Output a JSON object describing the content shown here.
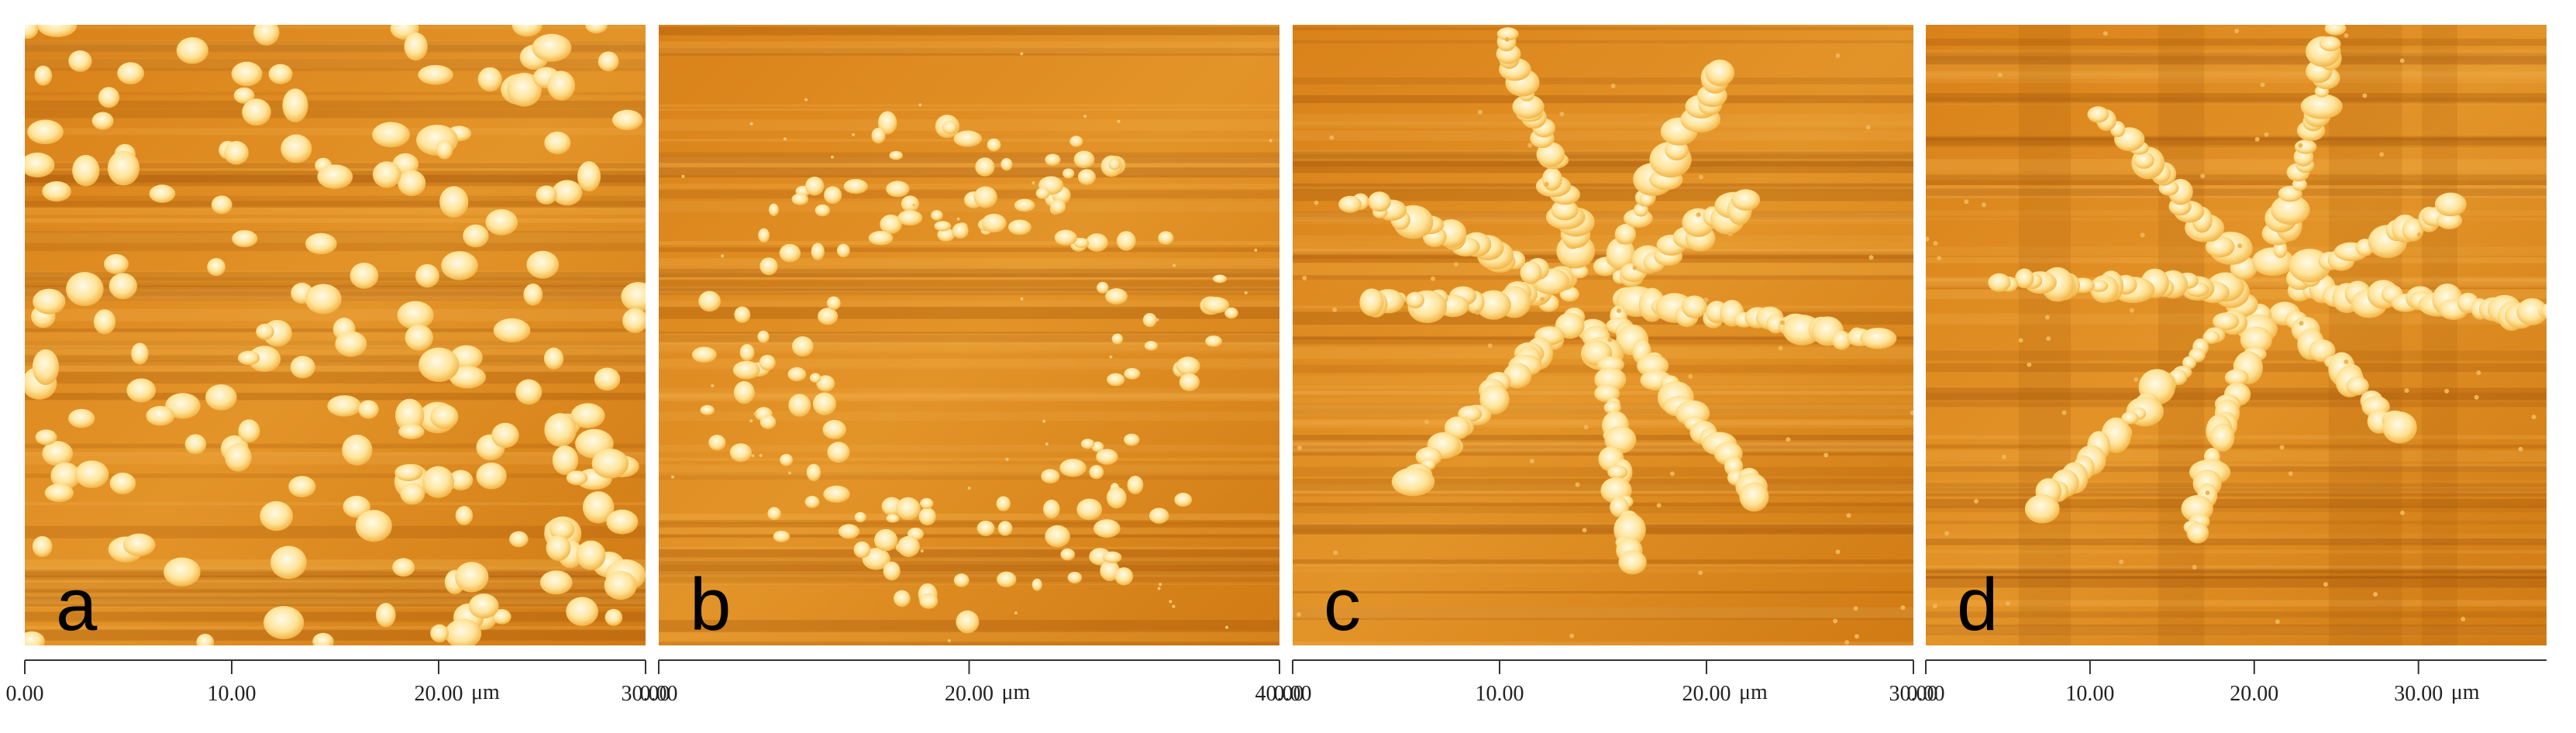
{
  "panels": [
    {
      "label": "a",
      "axis": {
        "xlim": [
          0,
          30
        ],
        "xticks": [
          {
            "value": 0,
            "label": "0.00"
          },
          {
            "value": 10,
            "label": "10.00"
          },
          {
            "value": 20,
            "label": "20.00"
          },
          {
            "value": 30,
            "label": "30.00"
          }
        ],
        "unit": "μm"
      }
    },
    {
      "label": "b",
      "axis": {
        "xlim": [
          0,
          40
        ],
        "xticks": [
          {
            "value": 0,
            "label": "0.00"
          },
          {
            "value": 20,
            "label": "20.00"
          },
          {
            "value": 40,
            "label": "40.00"
          }
        ],
        "unit": "μm"
      }
    },
    {
      "label": "c",
      "axis": {
        "xlim": [
          0,
          30
        ],
        "xticks": [
          {
            "value": 0,
            "label": "0.00"
          },
          {
            "value": 10,
            "label": "10.00"
          },
          {
            "value": 20,
            "label": "20.00"
          },
          {
            "value": 30,
            "label": "30.00"
          }
        ],
        "unit": "μm"
      }
    },
    {
      "label": "d",
      "axis": {
        "xlim": [
          0,
          37.8
        ],
        "xticks": [
          {
            "value": 0,
            "label": "0.00"
          },
          {
            "value": 10,
            "label": "10.00"
          },
          {
            "value": 20,
            "label": "20.00"
          },
          {
            "value": 30,
            "label": "30.00"
          }
        ],
        "unit": "μm"
      }
    }
  ]
}
